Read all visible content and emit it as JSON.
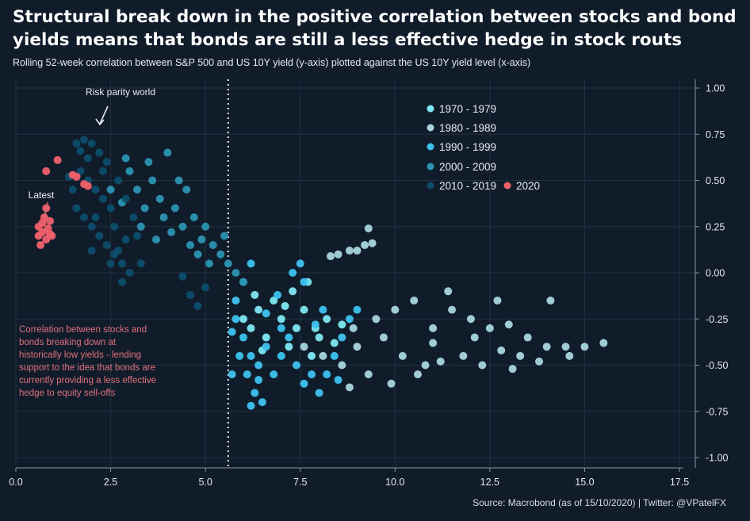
{
  "title": "Structural break down in the positive correlation between stocks and bond yields means that bonds are still a less effective hedge in stock routs",
  "subtitle": "Rolling 52-week correlation between S&P 500 and US 10Y yield (y-axis) plotted against the US 10Y yield level (x-axis)",
  "source": "Source: Macrobond (as of 15/10/2020) | Twitter: @VPatelFX",
  "chart_data": {
    "type": "scatter",
    "xlabel": "",
    "ylabel": "",
    "xlim": [
      0,
      17.5
    ],
    "ylim": [
      -1.05,
      1.05
    ],
    "x_ticks": [
      "0.0",
      "2.5",
      "5.0",
      "7.5",
      "10.0",
      "12.5",
      "15.0",
      "17.5"
    ],
    "y_ticks": [
      "1.00",
      "0.75",
      "0.50",
      "0.25",
      "0.00",
      "-0.25",
      "-0.50",
      "-0.75",
      "-1.00"
    ],
    "y_axis_side": "right",
    "grid": true,
    "vline": {
      "x": 5.6,
      "style": "dotted"
    },
    "legend_position": "top-center",
    "series": [
      {
        "name": "1970 - 1979",
        "color": "#7fe9f2",
        "points": [
          [
            6.0,
            -0.25
          ],
          [
            6.2,
            -0.3
          ],
          [
            6.4,
            -0.2
          ],
          [
            6.6,
            -0.35
          ],
          [
            6.8,
            -0.15
          ],
          [
            7.0,
            -0.25
          ],
          [
            7.2,
            -0.4
          ],
          [
            7.4,
            -0.3
          ],
          [
            7.6,
            -0.2
          ],
          [
            7.8,
            -0.45
          ],
          [
            8.0,
            -0.35
          ],
          [
            8.2,
            -0.25
          ],
          [
            7.3,
            -0.1
          ],
          [
            7.9,
            -0.3
          ],
          [
            6.5,
            -0.42
          ],
          [
            7.1,
            -0.18
          ],
          [
            8.4,
            -0.38
          ],
          [
            6.3,
            -0.12
          ],
          [
            7.7,
            -0.05
          ],
          [
            8.6,
            -0.28
          ]
        ]
      },
      {
        "name": "1980 - 1989",
        "color": "#a9d6dc",
        "points": [
          [
            8.5,
            0.1
          ],
          [
            8.8,
            0.12
          ],
          [
            9.0,
            0.12
          ],
          [
            9.2,
            0.15
          ],
          [
            9.4,
            0.16
          ],
          [
            9.3,
            0.24
          ],
          [
            8.3,
            0.09
          ],
          [
            9.5,
            -0.25
          ],
          [
            10.0,
            -0.2
          ],
          [
            10.5,
            -0.15
          ],
          [
            11.0,
            -0.3
          ],
          [
            11.5,
            -0.2
          ],
          [
            12.0,
            -0.25
          ],
          [
            12.5,
            -0.3
          ],
          [
            13.0,
            -0.28
          ],
          [
            13.5,
            -0.35
          ],
          [
            14.0,
            -0.4
          ],
          [
            14.5,
            -0.4
          ],
          [
            15.0,
            -0.4
          ],
          [
            15.5,
            -0.38
          ],
          [
            10.2,
            -0.45
          ],
          [
            10.8,
            -0.5
          ],
          [
            11.2,
            -0.48
          ],
          [
            11.8,
            -0.45
          ],
          [
            12.3,
            -0.5
          ],
          [
            12.8,
            -0.42
          ],
          [
            13.3,
            -0.45
          ],
          [
            13.8,
            -0.48
          ],
          [
            9.0,
            -0.4
          ],
          [
            9.3,
            -0.55
          ],
          [
            8.6,
            -0.5
          ],
          [
            8.1,
            -0.45
          ],
          [
            7.6,
            -0.4
          ],
          [
            8.9,
            -0.3
          ],
          [
            9.7,
            -0.35
          ],
          [
            11.4,
            -0.1
          ],
          [
            12.7,
            -0.15
          ],
          [
            14.1,
            -0.15
          ],
          [
            10.6,
            -0.55
          ],
          [
            13.1,
            -0.52
          ],
          [
            9.9,
            -0.6
          ],
          [
            8.8,
            -0.62
          ],
          [
            11.0,
            -0.38
          ],
          [
            12.1,
            -0.35
          ],
          [
            14.6,
            -0.45
          ]
        ]
      },
      {
        "name": "1990 - 1999",
        "color": "#3ec3f0",
        "points": [
          [
            5.8,
            -0.25
          ],
          [
            6.0,
            -0.35
          ],
          [
            6.2,
            -0.45
          ],
          [
            6.4,
            -0.5
          ],
          [
            6.6,
            -0.4
          ],
          [
            6.8,
            -0.55
          ],
          [
            7.0,
            -0.45
          ],
          [
            7.2,
            -0.35
          ],
          [
            7.4,
            -0.5
          ],
          [
            7.6,
            -0.6
          ],
          [
            7.8,
            -0.55
          ],
          [
            8.0,
            -0.65
          ],
          [
            8.2,
            -0.55
          ],
          [
            8.4,
            -0.45
          ],
          [
            8.6,
            -0.35
          ],
          [
            8.8,
            -0.25
          ],
          [
            9.0,
            -0.2
          ],
          [
            5.9,
            -0.45
          ],
          [
            6.1,
            -0.55
          ],
          [
            6.3,
            -0.65
          ],
          [
            6.5,
            -0.7
          ],
          [
            6.2,
            -0.72
          ],
          [
            5.7,
            -0.55
          ],
          [
            5.8,
            -0.15
          ],
          [
            6.0,
            -0.05
          ],
          [
            6.2,
            0.05
          ],
          [
            7.3,
            0.0
          ],
          [
            7.6,
            -0.05
          ],
          [
            8.1,
            -0.2
          ],
          [
            7.0,
            -0.3
          ],
          [
            6.9,
            -0.12
          ],
          [
            5.7,
            -0.32
          ],
          [
            8.5,
            -0.58
          ],
          [
            7.9,
            -0.28
          ],
          [
            6.6,
            -0.22
          ],
          [
            7.5,
            0.05
          ],
          [
            6.4,
            -0.58
          ]
        ]
      },
      {
        "name": "2000 - 2009",
        "color": "#2c93b1",
        "points": [
          [
            2.5,
            0.45
          ],
          [
            2.8,
            0.38
          ],
          [
            3.0,
            0.55
          ],
          [
            3.2,
            0.45
          ],
          [
            3.4,
            0.35
          ],
          [
            3.6,
            0.5
          ],
          [
            3.8,
            0.4
          ],
          [
            4.0,
            0.65
          ],
          [
            4.2,
            0.35
          ],
          [
            4.4,
            0.25
          ],
          [
            4.6,
            0.15
          ],
          [
            4.8,
            0.1
          ],
          [
            5.0,
            0.25
          ],
          [
            5.2,
            0.15
          ],
          [
            5.4,
            0.1
          ],
          [
            5.6,
            0.05
          ],
          [
            5.8,
            0.0
          ],
          [
            6.0,
            -0.05
          ],
          [
            4.3,
            0.5
          ],
          [
            3.5,
            0.6
          ],
          [
            3.9,
            0.3
          ],
          [
            4.7,
            0.3
          ],
          [
            5.1,
            0.05
          ],
          [
            5.5,
            0.2
          ],
          [
            4.5,
            0.45
          ],
          [
            3.3,
            0.25
          ],
          [
            2.9,
            0.62
          ],
          [
            3.7,
            0.18
          ],
          [
            4.1,
            0.22
          ],
          [
            4.9,
            0.18
          ]
        ]
      },
      {
        "name": "2010 - 2019",
        "color": "#0d4e6b",
        "points": [
          [
            1.6,
            0.7
          ],
          [
            1.8,
            0.72
          ],
          [
            2.0,
            0.7
          ],
          [
            2.2,
            0.65
          ],
          [
            1.7,
            0.55
          ],
          [
            1.9,
            0.5
          ],
          [
            2.1,
            0.45
          ],
          [
            2.3,
            0.4
          ],
          [
            2.5,
            0.35
          ],
          [
            1.5,
            0.45
          ],
          [
            1.6,
            0.35
          ],
          [
            1.8,
            0.3
          ],
          [
            2.0,
            0.25
          ],
          [
            2.2,
            0.2
          ],
          [
            2.4,
            0.15
          ],
          [
            2.6,
            0.1
          ],
          [
            2.8,
            0.05
          ],
          [
            3.0,
            0.0
          ],
          [
            2.7,
            0.5
          ],
          [
            2.9,
            0.4
          ],
          [
            3.1,
            0.3
          ],
          [
            2.4,
            0.6
          ],
          [
            2.6,
            0.25
          ],
          [
            2.8,
            -0.05
          ],
          [
            3.2,
            0.2
          ],
          [
            1.9,
            0.62
          ],
          [
            2.3,
            0.55
          ],
          [
            2.5,
            0.05
          ],
          [
            2.9,
            0.18
          ],
          [
            4.6,
            -0.12
          ],
          [
            4.8,
            -0.18
          ],
          [
            5.0,
            -0.08
          ],
          [
            4.4,
            -0.02
          ],
          [
            1.4,
            0.52
          ],
          [
            2.1,
            0.3
          ],
          [
            2.7,
            0.12
          ],
          [
            3.3,
            0.05
          ],
          [
            1.7,
            0.66
          ],
          [
            2.0,
            0.12
          ]
        ]
      },
      {
        "name": "2020",
        "color": "#f0616c",
        "points": [
          [
            0.6,
            0.25
          ],
          [
            0.7,
            0.22
          ],
          [
            0.8,
            0.18
          ],
          [
            0.65,
            0.15
          ],
          [
            0.9,
            0.28
          ],
          [
            0.75,
            0.3
          ],
          [
            0.6,
            0.2
          ],
          [
            0.85,
            0.24
          ],
          [
            0.95,
            0.2
          ],
          [
            0.8,
            0.35
          ],
          [
            0.8,
            0.55
          ],
          [
            1.1,
            0.61
          ],
          [
            1.5,
            0.53
          ],
          [
            1.6,
            0.52
          ],
          [
            1.8,
            0.48
          ],
          [
            1.9,
            0.47
          ],
          [
            0.7,
            0.27
          ],
          [
            0.9,
            0.21
          ]
        ]
      }
    ],
    "annotations": {
      "risk_parity": "Risk parity world",
      "latest": "Latest",
      "note_lines": [
        "Correlation between stocks and",
        "bonds breaking down at",
        "historically low yields - lending",
        "support to the idea that bonds are",
        "currently providing a less effective",
        "hedge to equity sell-offs"
      ]
    }
  }
}
